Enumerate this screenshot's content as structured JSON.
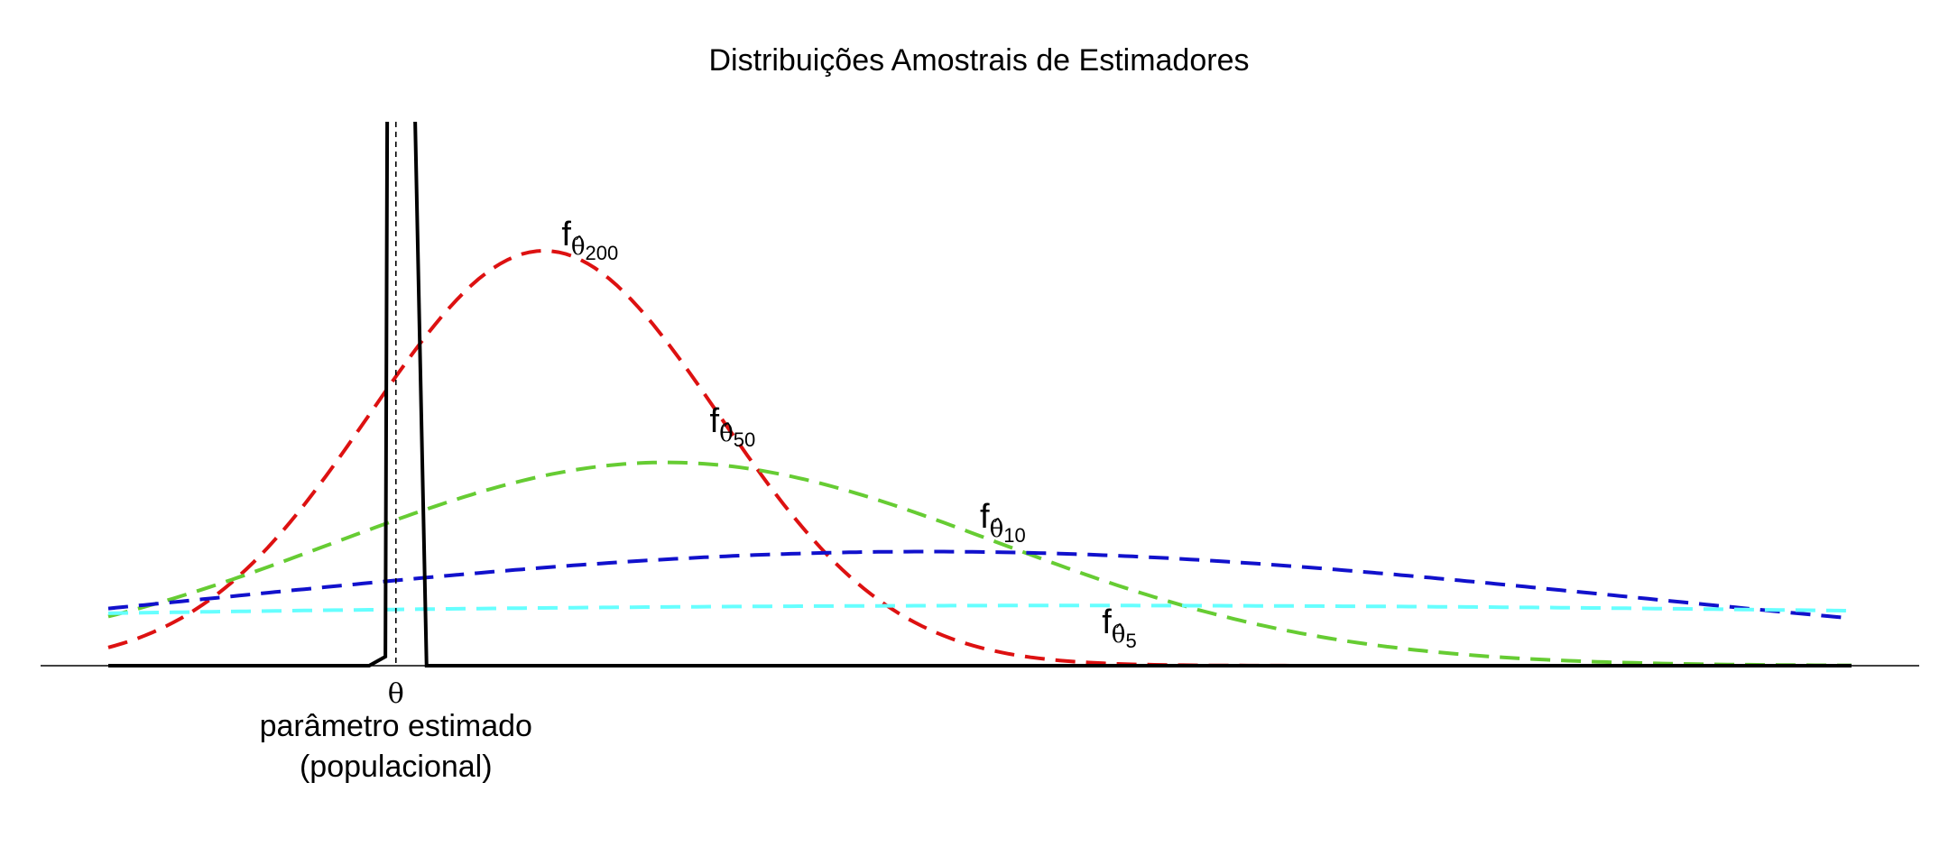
{
  "chart_data": {
    "type": "line",
    "title": "Distribuições Amostrais de Estimadores",
    "xlabel": "",
    "ylabel": "",
    "xlim": [
      0,
      10
    ],
    "ylim": [
      0,
      1
    ],
    "grid": false,
    "legend": "none",
    "theta": {
      "value": 1.65,
      "tick_label": "θ",
      "caption_line1": "parâmetro estimado",
      "caption_line2": "(populacional)"
    },
    "spike": {
      "left": 1.6,
      "right": 1.8,
      "peak_label": ""
    },
    "series": [
      {
        "id": "n200",
        "label_f": "f",
        "label_theta": "θ̂",
        "label_sub": "200",
        "color": "#dd1111",
        "mean": 2.5,
        "sd": 1.0,
        "peak": 1.0,
        "label_at": [
          2.6,
          1.0
        ]
      },
      {
        "id": "n50",
        "label_f": "f",
        "label_theta": "θ̂",
        "label_sub": "50",
        "color": "#66cc33",
        "mean": 3.2,
        "sd": 1.9,
        "peak": 0.49,
        "label_at": [
          3.45,
          0.55
        ]
      },
      {
        "id": "n10",
        "label_f": "f",
        "label_theta": "θ̂",
        "label_sub": "10",
        "color": "#1111cc",
        "mean": 4.7,
        "sd": 4.0,
        "peak": 0.275,
        "label_at": [
          5.0,
          0.32
        ]
      },
      {
        "id": "n5",
        "label_f": "f",
        "label_theta": "θ̂",
        "label_sub": "5",
        "color": "#66ffff",
        "mean": 5.5,
        "sd": 10.5,
        "peak": 0.145,
        "label_at": [
          5.7,
          0.065
        ]
      }
    ]
  }
}
